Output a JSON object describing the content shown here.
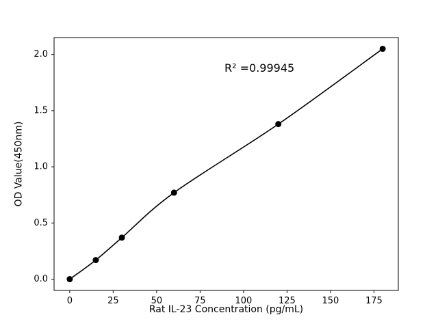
{
  "chart_data": {
    "type": "scatter",
    "title": "",
    "xlabel": "Rat IL-23 Concentration (pg/mL)",
    "ylabel": "OD Value(450nm)",
    "annotation": "R² =0.99945",
    "x": [
      0,
      15,
      30,
      60,
      120,
      180
    ],
    "y": [
      0.0,
      0.17,
      0.37,
      0.77,
      1.38,
      2.05
    ],
    "xticks": [
      0,
      25,
      50,
      75,
      100,
      125,
      150,
      175
    ],
    "yticks": [
      0.0,
      0.5,
      1.0,
      1.5,
      2.0
    ],
    "xlim": [
      -9,
      189
    ],
    "ylim": [
      -0.1,
      2.15
    ],
    "has_fit_line": true,
    "legend": "none",
    "grid": false,
    "marker_color": "#000000",
    "line_color": "#000000",
    "axis_color": "#000000",
    "background_color": "#ffffff"
  }
}
